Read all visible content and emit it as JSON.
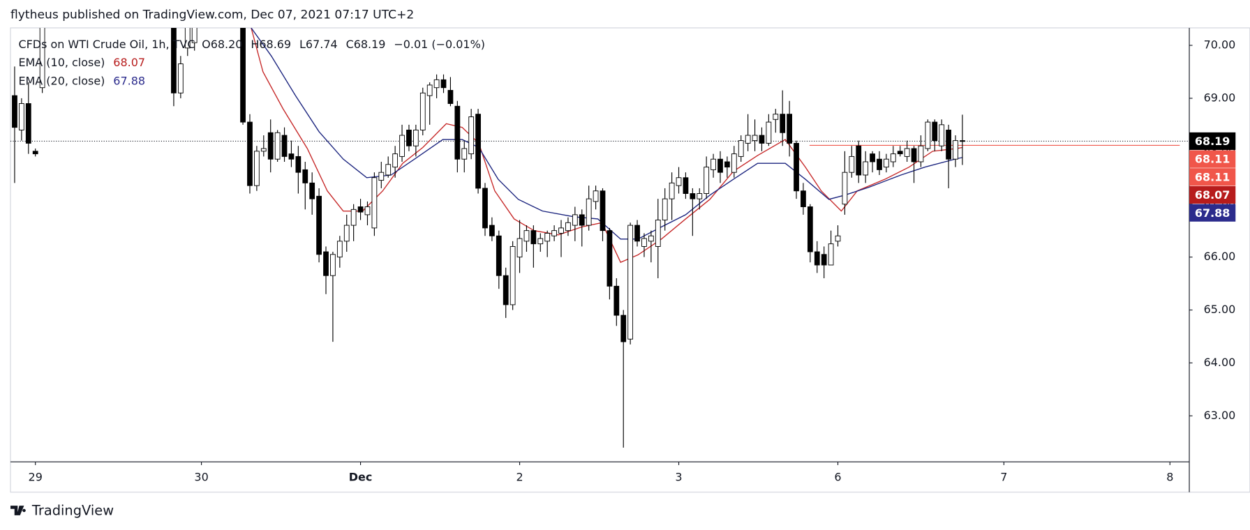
{
  "header": {
    "title": "flytheus published on TradingView.com, Dec 07, 2021 07:17 UTC+2"
  },
  "footer": {
    "brand": "TradingView"
  },
  "chart_data": {
    "type": "candlestick",
    "legend": {
      "symbol": "CFDs on WTI Crude Oil, 1h, TVC",
      "ohlc": [
        "O68.20",
        "H68.69",
        "L67.74",
        "C68.19"
      ],
      "change": "−0.01 (−0.01%)"
    },
    "x": [
      0,
      1,
      2,
      3,
      4,
      23,
      24,
      25,
      26,
      33,
      34,
      35,
      36,
      37,
      38,
      39,
      40,
      41,
      42,
      43,
      44,
      45,
      46,
      47,
      48,
      49,
      50,
      51,
      52,
      53,
      54,
      55,
      56,
      57,
      58,
      59,
      60,
      61,
      62,
      63,
      64,
      65,
      66,
      67,
      68,
      69,
      70,
      71,
      72,
      73,
      74,
      75,
      76,
      77,
      78,
      79,
      80,
      81,
      82,
      83,
      84,
      85,
      86,
      87,
      88,
      89,
      90,
      91,
      92,
      93,
      94,
      95,
      96,
      97,
      98,
      99,
      100,
      101,
      102,
      103,
      104,
      105,
      106,
      107,
      108,
      109,
      110,
      111,
      112,
      113,
      114,
      115,
      116,
      117,
      118,
      119,
      120,
      121,
      122,
      123,
      124,
      125,
      126,
      127,
      128,
      129,
      130,
      131,
      132,
      133,
      134,
      135,
      136,
      137
    ],
    "open": [
      69.05,
      68.4,
      68.9,
      68.0,
      69.2,
      70.5,
      69.1,
      69.95,
      70.05,
      70.5,
      68.55,
      67.35,
      68.0,
      68.35,
      67.85,
      68.3,
      67.95,
      67.9,
      67.65,
      67.4,
      67.15,
      66.1,
      65.65,
      66.0,
      66.3,
      66.6,
      66.95,
      66.8,
      66.55,
      67.45,
      67.55,
      67.7,
      67.9,
      68.4,
      68.1,
      68.4,
      69.05,
      69.2,
      69.35,
      69.15,
      68.85,
      67.85,
      67.95,
      68.7,
      67.3,
      66.6,
      66.4,
      65.65,
      65.1,
      66.0,
      66.3,
      66.5,
      66.25,
      66.3,
      66.4,
      66.45,
      66.5,
      66.6,
      66.8,
      66.6,
      67.05,
      67.25,
      66.5,
      65.45,
      64.9,
      64.45,
      66.6,
      66.2,
      66.3,
      66.2,
      66.7,
      67.1,
      67.35,
      67.5,
      67.2,
      67.1,
      67.2,
      67.65,
      67.85,
      67.8,
      67.6,
      67.9,
      68.15,
      68.2,
      68.3,
      68.15,
      68.6,
      68.7,
      68.7,
      68.15,
      67.25,
      66.95,
      66.1,
      66.05,
      65.85,
      66.3,
      67.0,
      67.6,
      68.1,
      67.55,
      67.95,
      67.85,
      67.7,
      67.8,
      68.0,
      67.9,
      68.05,
      67.8,
      68.05,
      68.55,
      68.1,
      68.4,
      67.85,
      68.2
    ],
    "high": [
      69.6,
      69.0,
      69.3,
      68.05,
      70.6,
      70.6,
      69.8,
      70.6,
      70.6,
      70.6,
      68.7,
      68.1,
      68.3,
      68.6,
      68.4,
      68.45,
      68.2,
      68.1,
      67.8,
      67.6,
      67.3,
      66.2,
      66.1,
      66.4,
      66.8,
      67.0,
      67.1,
      67.05,
      67.6,
      67.8,
      67.9,
      68.1,
      68.5,
      68.5,
      68.5,
      69.2,
      69.3,
      69.45,
      69.45,
      69.4,
      68.95,
      68.2,
      68.8,
      68.8,
      67.4,
      66.75,
      66.5,
      65.8,
      66.3,
      66.7,
      66.6,
      66.6,
      66.45,
      66.5,
      66.6,
      66.7,
      66.75,
      66.95,
      66.9,
      67.35,
      67.35,
      67.3,
      66.55,
      65.6,
      65.0,
      66.65,
      66.7,
      66.45,
      66.5,
      67.1,
      67.3,
      67.6,
      67.7,
      67.6,
      67.3,
      67.3,
      67.9,
      67.95,
      68.0,
      67.9,
      68.1,
      68.3,
      68.7,
      68.6,
      68.45,
      68.7,
      68.8,
      69.15,
      68.95,
      68.2,
      67.4,
      67.0,
      66.3,
      66.2,
      66.5,
      66.6,
      68.0,
      68.1,
      68.2,
      68.0,
      68.0,
      68.0,
      67.95,
      68.1,
      68.1,
      68.2,
      68.1,
      68.3,
      68.6,
      68.6,
      68.6,
      68.5,
      68.3,
      68.69
    ],
    "low": [
      67.4,
      68.2,
      67.95,
      67.9,
      69.1,
      68.85,
      69.0,
      69.8,
      69.9,
      68.5,
      67.2,
      67.25,
      67.9,
      67.6,
      67.8,
      67.8,
      67.7,
      67.2,
      66.9,
      66.8,
      65.9,
      65.3,
      64.4,
      65.8,
      66.1,
      66.3,
      66.7,
      66.6,
      66.4,
      67.3,
      67.5,
      67.5,
      67.8,
      68.0,
      67.9,
      68.3,
      68.5,
      69.0,
      69.1,
      68.85,
      67.6,
      67.6,
      67.85,
      67.2,
      66.4,
      66.3,
      65.4,
      64.85,
      65.0,
      65.7,
      66.1,
      65.8,
      66.1,
      66.0,
      66.3,
      66.0,
      66.4,
      66.3,
      66.2,
      66.5,
      66.9,
      66.3,
      65.2,
      64.7,
      62.4,
      64.35,
      66.2,
      66.0,
      65.9,
      65.6,
      66.5,
      66.7,
      67.2,
      67.1,
      66.4,
      66.9,
      67.1,
      67.5,
      67.4,
      67.5,
      67.5,
      67.8,
      68.0,
      68.0,
      68.0,
      68.1,
      68.35,
      68.1,
      67.9,
      67.1,
      66.8,
      65.9,
      65.7,
      65.6,
      65.85,
      66.2,
      66.8,
      67.5,
      67.4,
      67.4,
      67.6,
      67.55,
      67.6,
      67.7,
      67.9,
      67.8,
      67.4,
      67.7,
      68.0,
      68.0,
      68.0,
      67.3,
      67.7,
      67.74
    ],
    "close": [
      68.45,
      68.9,
      68.15,
      67.95,
      70.5,
      69.1,
      69.65,
      70.5,
      70.5,
      68.55,
      67.35,
      68.0,
      68.05,
      67.85,
      68.35,
      67.9,
      67.85,
      67.6,
      67.4,
      67.1,
      66.05,
      65.65,
      66.05,
      66.3,
      66.6,
      66.9,
      66.85,
      66.95,
      67.5,
      67.6,
      67.75,
      67.95,
      68.3,
      68.1,
      68.4,
      69.1,
      69.25,
      69.35,
      69.2,
      68.9,
      67.85,
      68.05,
      68.65,
      67.3,
      66.55,
      66.4,
      65.65,
      65.1,
      66.2,
      66.35,
      66.5,
      66.25,
      66.35,
      66.45,
      66.5,
      66.55,
      66.65,
      66.8,
      66.6,
      67.1,
      67.25,
      66.5,
      65.45,
      64.9,
      64.4,
      66.6,
      66.3,
      66.35,
      66.4,
      66.7,
      67.1,
      67.4,
      67.5,
      67.2,
      67.1,
      67.2,
      67.7,
      67.85,
      67.6,
      67.7,
      67.95,
      68.2,
      68.3,
      68.3,
      68.15,
      68.55,
      68.7,
      68.35,
      68.15,
      67.25,
      66.95,
      66.1,
      65.85,
      65.85,
      66.25,
      66.4,
      67.6,
      67.9,
      67.55,
      67.8,
      67.8,
      67.65,
      67.85,
      67.95,
      67.95,
      68.05,
      67.8,
      68.1,
      68.55,
      68.2,
      68.5,
      67.85,
      68.2,
      68.19
    ],
    "up_color": "#ffffff",
    "down_color": "#000000",
    "wick_color": "#000000",
    "series": [
      {
        "name": "EMA (10, close)",
        "color": "#c62828",
        "label_color": "#b71c1c",
        "legend_value": 68.07,
        "x": [
          34.2,
          35.9,
          38.8,
          42.3,
          45.2,
          47.5,
          50.3,
          53.2,
          56.1,
          59.0,
          62.4,
          64.7,
          67.1,
          69.4,
          72.2,
          75.1,
          78.6,
          82.0,
          84.9,
          87.6,
          90.1,
          93.5,
          97.0,
          100.5,
          103.9,
          107.4,
          111.4,
          114.3,
          116.6,
          119.5,
          121.8,
          125.8,
          129.3,
          132.7,
          136.2,
          137
        ],
        "values": [
          70.33,
          69.5,
          68.8,
          68.05,
          67.25,
          66.87,
          66.87,
          67.25,
          67.77,
          68.07,
          68.52,
          68.45,
          68.15,
          67.25,
          66.72,
          66.5,
          66.42,
          66.57,
          66.65,
          65.9,
          66.04,
          66.34,
          66.72,
          67.09,
          67.62,
          67.92,
          68.22,
          67.7,
          67.25,
          66.87,
          67.25,
          67.47,
          67.7,
          68.0,
          68.05,
          68.07
        ]
      },
      {
        "name": "EMA (20, close)",
        "color": "#1a237e",
        "label_color": "#2b2b8c",
        "legend_value": 67.88,
        "x": [
          34.2,
          37.1,
          40.6,
          44.0,
          47.5,
          50.9,
          54.4,
          57.8,
          61.9,
          64.7,
          67.1,
          69.9,
          72.8,
          76.3,
          80.9,
          84.3,
          87.6,
          90.1,
          93.5,
          97.0,
          100.5,
          103.9,
          107.4,
          111.4,
          114.3,
          117.7,
          120.0,
          123.5,
          128.1,
          131.6,
          136.2,
          137
        ],
        "values": [
          70.33,
          69.8,
          69.05,
          68.37,
          67.85,
          67.5,
          67.55,
          67.85,
          68.22,
          68.22,
          68.07,
          67.47,
          67.09,
          66.87,
          66.76,
          66.72,
          66.34,
          66.34,
          66.57,
          66.8,
          67.17,
          67.47,
          67.77,
          67.77,
          67.47,
          67.09,
          67.17,
          67.32,
          67.55,
          67.7,
          67.86,
          67.88
        ]
      }
    ],
    "hline": {
      "value": 68.11,
      "color": "#f0564a",
      "from_x": 114.9
    },
    "xlim": [
      -0.6,
      169.8
    ],
    "xticks": [
      {
        "value": 3,
        "label": "29"
      },
      {
        "value": 27,
        "label": "30"
      },
      {
        "value": 50,
        "label": "Dec"
      },
      {
        "value": 73,
        "label": "2"
      },
      {
        "value": 96,
        "label": "3"
      },
      {
        "value": 119,
        "label": "6"
      },
      {
        "value": 143,
        "label": "7"
      },
      {
        "value": 167,
        "label": "8"
      }
    ],
    "ylim": [
      62.13,
      70.33
    ],
    "yticks": [
      {
        "value": 63,
        "label": "63.00"
      },
      {
        "value": 64,
        "label": "64.00"
      },
      {
        "value": 65,
        "label": "65.00"
      },
      {
        "value": 66,
        "label": "66.00"
      },
      {
        "value": 67,
        "label": "67.00"
      },
      {
        "value": 68,
        "label": "68.00"
      },
      {
        "value": 69,
        "label": "69.00"
      },
      {
        "value": 70,
        "label": "70.00"
      }
    ],
    "grid": false
  }
}
